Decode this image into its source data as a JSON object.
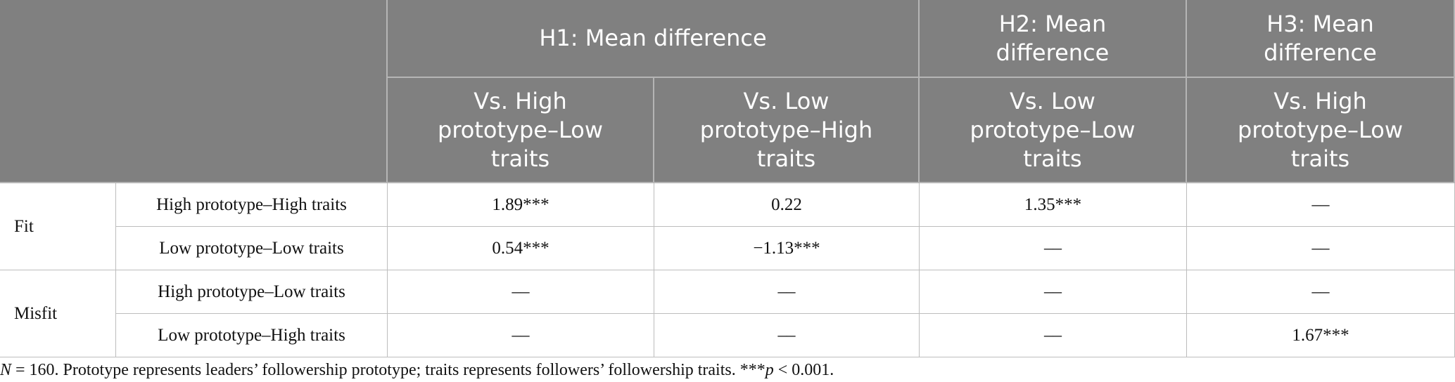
{
  "header": {
    "group_row": [
      "H1: Mean difference",
      "H2: Mean difference",
      "H3: Mean difference"
    ],
    "sub_row": [
      "Vs. High prototype–Low traits",
      "Vs. Low prototype–High traits",
      "Vs. Low prototype–Low traits",
      "Vs. High prototype–Low traits"
    ]
  },
  "table": {
    "groups": [
      {
        "label": "Fit",
        "rows": [
          {
            "label": "High prototype–High traits",
            "cells": [
              "1.89***",
              "0.22",
              "1.35***",
              "––"
            ]
          },
          {
            "label": "Low prototype–Low traits",
            "cells": [
              "0.54***",
              "−1.13***",
              "––",
              "––"
            ]
          }
        ]
      },
      {
        "label": "Misfit",
        "rows": [
          {
            "label": "High prototype–Low traits",
            "cells": [
              "––",
              "––",
              "––",
              "––"
            ]
          },
          {
            "label": "Low prototype–High traits",
            "cells": [
              "––",
              "––",
              "––",
              "1.67***"
            ]
          }
        ]
      }
    ]
  },
  "note": {
    "n": "N",
    "text1": " = 160. Prototype represents leaders’ followership prototype; traits represents followers’ followership traits. ***",
    "p": "p",
    "text2": " < 0.001."
  }
}
